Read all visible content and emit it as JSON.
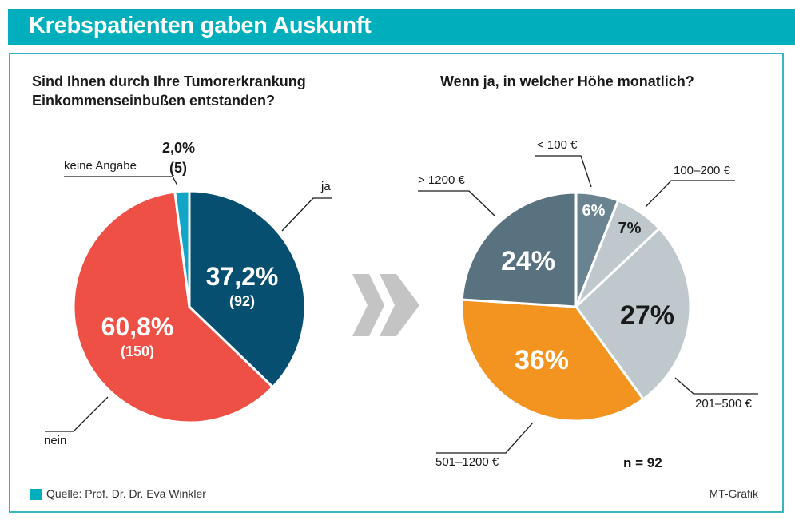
{
  "header": {
    "title": "Krebspatienten gaben Auskunft"
  },
  "colors": {
    "brand": "#00afbb"
  },
  "chart_data": [
    {
      "type": "pie",
      "title": "Sind Ihnen durch Ihre Tumorerkrankung Einkommenseinbußen entstanden?",
      "title_lines": [
        "Sind Ihnen durch Ihre Tumorerkrankung",
        "Einkommenseinbußen entstanden?"
      ],
      "start": "12 o'clock, clockwise",
      "slices": [
        {
          "name": "ja",
          "value": 37.2,
          "count": 92,
          "label": "37,2%",
          "count_label": "(92)",
          "color": "#074f71",
          "text_color": "#ffffff"
        },
        {
          "name": "nein",
          "value": 60.8,
          "count": 150,
          "label": "60,8%",
          "count_label": "(150)",
          "color": "#ef5046",
          "text_color": "#ffffff"
        },
        {
          "name": "keine Angabe",
          "value": 2.0,
          "count": 5,
          "label": "2,0%",
          "count_label": "(5)",
          "color": "#12a5c8",
          "text_color": "#1a1a1a"
        }
      ]
    },
    {
      "type": "pie",
      "title": "Wenn ja, in welcher Höhe monatlich?",
      "start": "12 o'clock, clockwise",
      "n_label": "n = 92",
      "slices": [
        {
          "name": "< 100 €",
          "value": 6,
          "label": "6%",
          "color": "#6a8391",
          "text_color": "#ffffff"
        },
        {
          "name": "100–200 €",
          "value": 7,
          "label": "7%",
          "color": "#bfc9cd",
          "text_color": "#1a1a1a"
        },
        {
          "name": "201–500 €",
          "value": 27,
          "label": "27%",
          "color": "#bfc9cd",
          "text_color": "#1a1a1a"
        },
        {
          "name": "501–1200 €",
          "value": 36,
          "label": "36%",
          "color": "#f39420",
          "text_color": "#ffffff"
        },
        {
          "name": "> 1200 €",
          "value": 24,
          "label": "24%",
          "color": "#59727f",
          "text_color": "#ffffff"
        }
      ]
    }
  ],
  "arrow_icon": "double-chevron-right",
  "footer": {
    "source": "Quelle: Prof. Dr. Dr. Eva Winkler",
    "credit": "MT-Grafik"
  }
}
